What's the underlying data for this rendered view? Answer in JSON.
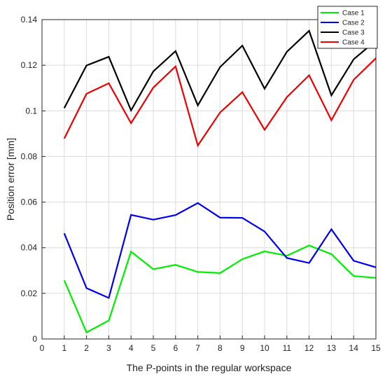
{
  "chart_data": {
    "type": "line",
    "title": "",
    "xlabel": "The P-points in the regular workspace",
    "ylabel": "Position error [mm]",
    "xlim": [
      0,
      15
    ],
    "ylim": [
      0,
      0.14
    ],
    "xticks": [
      0,
      1,
      2,
      3,
      4,
      5,
      6,
      7,
      8,
      9,
      10,
      11,
      12,
      13,
      14,
      15
    ],
    "yticks": [
      0,
      0.02,
      0.04,
      0.06,
      0.08,
      0.1,
      0.12,
      0.14
    ],
    "ytick_labels": [
      "0",
      "0.02",
      "0.04",
      "0.06",
      "0.08",
      "0.1",
      "0.12",
      "0.14"
    ],
    "grid": true,
    "legend_position": "top-right",
    "x": [
      1,
      2,
      3,
      4,
      5,
      6,
      7,
      8,
      9,
      10,
      11,
      12,
      13,
      14,
      15
    ],
    "series": [
      {
        "name": "Case 1",
        "color": "#00ee00",
        "values": [
          0.0257,
          0.0029,
          0.0081,
          0.0383,
          0.0306,
          0.0325,
          0.0294,
          0.0289,
          0.035,
          0.0384,
          0.0365,
          0.041,
          0.0372,
          0.0276,
          0.0268
        ]
      },
      {
        "name": "Case 2",
        "color": "#0000ee",
        "values": [
          0.0463,
          0.0223,
          0.018,
          0.0544,
          0.0523,
          0.0543,
          0.0596,
          0.0532,
          0.0531,
          0.0471,
          0.0355,
          0.0333,
          0.0481,
          0.0343,
          0.0314
        ]
      },
      {
        "name": "Case 3",
        "color": "#000000",
        "values": [
          0.1012,
          0.1199,
          0.1237,
          0.1002,
          0.1173,
          0.1262,
          0.1024,
          0.1192,
          0.1286,
          0.1097,
          0.1259,
          0.1351,
          0.1068,
          0.1226,
          0.1308
        ]
      },
      {
        "name": "Case 4",
        "color": "#ee0000",
        "values": [
          0.0879,
          0.1075,
          0.1121,
          0.0946,
          0.1102,
          0.1195,
          0.0848,
          0.0993,
          0.1082,
          0.0917,
          0.106,
          0.1156,
          0.0959,
          0.1136,
          0.1231
        ]
      }
    ]
  }
}
